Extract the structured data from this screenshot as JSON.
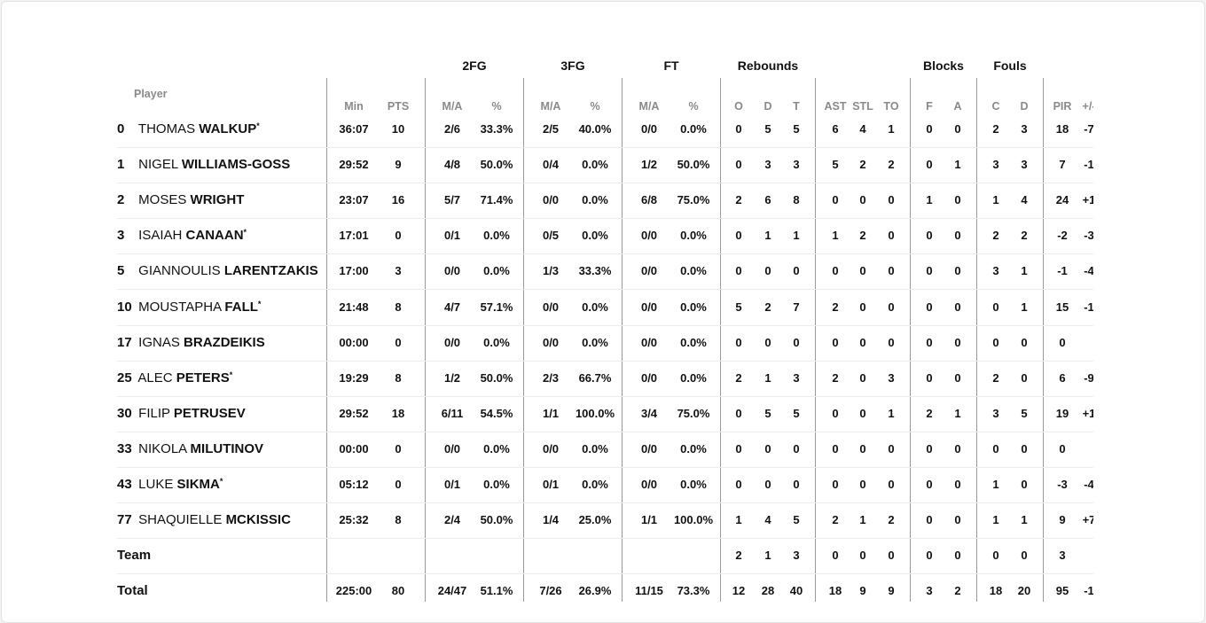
{
  "header": {
    "player_label": "Player",
    "groups": [
      {
        "label": "2FG",
        "col": 2
      },
      {
        "label": "3FG",
        "col": 4
      },
      {
        "label": "FT",
        "col": 6
      },
      {
        "label": "Rebounds",
        "col": 9
      },
      {
        "label": "Blocks",
        "col": 14
      },
      {
        "label": "Fouls",
        "col": 16
      }
    ],
    "columns": [
      "Min",
      "PTS",
      "M/A",
      "%",
      "M/A",
      "%",
      "M/A",
      "%",
      "O",
      "D",
      "T",
      "AST",
      "STL",
      "TO",
      "F",
      "A",
      "C",
      "D",
      "PIR",
      "+/-"
    ]
  },
  "players": [
    {
      "num": "0",
      "first": "THOMAS",
      "last": "WALKUP",
      "starter": true,
      "stats": [
        "36:07",
        "10",
        "2/6",
        "33.3%",
        "2/5",
        "40.0%",
        "0/0",
        "0.0%",
        "0",
        "5",
        "5",
        "6",
        "4",
        "1",
        "0",
        "0",
        "2",
        "3",
        "18",
        "-7"
      ]
    },
    {
      "num": "1",
      "first": "NIGEL",
      "last": "WILLIAMS-GOSS",
      "starter": false,
      "stats": [
        "29:52",
        "9",
        "4/8",
        "50.0%",
        "0/4",
        "0.0%",
        "1/2",
        "50.0%",
        "0",
        "3",
        "3",
        "5",
        "2",
        "2",
        "0",
        "1",
        "3",
        "3",
        "7",
        "-1"
      ]
    },
    {
      "num": "2",
      "first": "MOSES",
      "last": "WRIGHT",
      "starter": false,
      "stats": [
        "23:07",
        "16",
        "5/7",
        "71.4%",
        "0/0",
        "0.0%",
        "6/8",
        "75.0%",
        "2",
        "6",
        "8",
        "0",
        "0",
        "0",
        "1",
        "0",
        "1",
        "4",
        "24",
        "+1"
      ]
    },
    {
      "num": "3",
      "first": "ISAIAH",
      "last": "CANAAN",
      "starter": true,
      "stats": [
        "17:01",
        "0",
        "0/1",
        "0.0%",
        "0/5",
        "0.0%",
        "0/0",
        "0.0%",
        "0",
        "1",
        "1",
        "1",
        "2",
        "0",
        "0",
        "0",
        "2",
        "2",
        "-2",
        "-3"
      ]
    },
    {
      "num": "5",
      "first": "GIANNOULIS",
      "last": "LARENTZAKIS",
      "starter": false,
      "stats": [
        "17:00",
        "3",
        "0/0",
        "0.0%",
        "1/3",
        "33.3%",
        "0/0",
        "0.0%",
        "0",
        "0",
        "0",
        "0",
        "0",
        "0",
        "0",
        "0",
        "3",
        "1",
        "-1",
        "-4"
      ]
    },
    {
      "num": "10",
      "first": "MOUSTAPHA",
      "last": "FALL",
      "starter": true,
      "stats": [
        "21:48",
        "8",
        "4/7",
        "57.1%",
        "0/0",
        "0.0%",
        "0/0",
        "0.0%",
        "5",
        "2",
        "7",
        "2",
        "0",
        "0",
        "0",
        "0",
        "0",
        "1",
        "15",
        "-1"
      ]
    },
    {
      "num": "17",
      "first": "IGNAS",
      "last": "BRAZDEIKIS",
      "starter": false,
      "stats": [
        "00:00",
        "0",
        "0/0",
        "0.0%",
        "0/0",
        "0.0%",
        "0/0",
        "0.0%",
        "0",
        "0",
        "0",
        "0",
        "0",
        "0",
        "0",
        "0",
        "0",
        "0",
        "0",
        ""
      ]
    },
    {
      "num": "25",
      "first": "ALEC",
      "last": "PETERS",
      "starter": true,
      "stats": [
        "19:29",
        "8",
        "1/2",
        "50.0%",
        "2/3",
        "66.7%",
        "0/0",
        "0.0%",
        "2",
        "1",
        "3",
        "2",
        "0",
        "3",
        "0",
        "0",
        "2",
        "0",
        "6",
        "-9"
      ]
    },
    {
      "num": "30",
      "first": "FILIP",
      "last": "PETRUSEV",
      "starter": false,
      "stats": [
        "29:52",
        "18",
        "6/11",
        "54.5%",
        "1/1",
        "100.0%",
        "3/4",
        "75.0%",
        "0",
        "5",
        "5",
        "0",
        "0",
        "1",
        "2",
        "1",
        "3",
        "5",
        "19",
        "+1"
      ]
    },
    {
      "num": "33",
      "first": "NIKOLA",
      "last": "MILUTINOV",
      "starter": false,
      "stats": [
        "00:00",
        "0",
        "0/0",
        "0.0%",
        "0/0",
        "0.0%",
        "0/0",
        "0.0%",
        "0",
        "0",
        "0",
        "0",
        "0",
        "0",
        "0",
        "0",
        "0",
        "0",
        "0",
        ""
      ]
    },
    {
      "num": "43",
      "first": "LUKE",
      "last": "SIKMA",
      "starter": true,
      "stats": [
        "05:12",
        "0",
        "0/1",
        "0.0%",
        "0/1",
        "0.0%",
        "0/0",
        "0.0%",
        "0",
        "0",
        "0",
        "0",
        "0",
        "0",
        "0",
        "0",
        "1",
        "0",
        "-3",
        "-4"
      ]
    },
    {
      "num": "77",
      "first": "SHAQUIELLE",
      "last": "MCKISSIC",
      "starter": false,
      "stats": [
        "25:32",
        "8",
        "2/4",
        "50.0%",
        "1/4",
        "25.0%",
        "1/1",
        "100.0%",
        "1",
        "4",
        "5",
        "2",
        "1",
        "2",
        "0",
        "0",
        "1",
        "1",
        "9",
        "+7"
      ]
    }
  ],
  "team": {
    "label": "Team",
    "stats": [
      "",
      "",
      "",
      "",
      "",
      "",
      "",
      "",
      "2",
      "1",
      "3",
      "0",
      "0",
      "0",
      "0",
      "0",
      "0",
      "0",
      "3",
      ""
    ]
  },
  "total": {
    "label": "Total",
    "stats": [
      "225:00",
      "80",
      "24/47",
      "51.1%",
      "7/26",
      "26.9%",
      "11/15",
      "73.3%",
      "12",
      "28",
      "40",
      "18",
      "9",
      "9",
      "3",
      "2",
      "18",
      "20",
      "95",
      "-1"
    ]
  },
  "starter_mark": "*"
}
